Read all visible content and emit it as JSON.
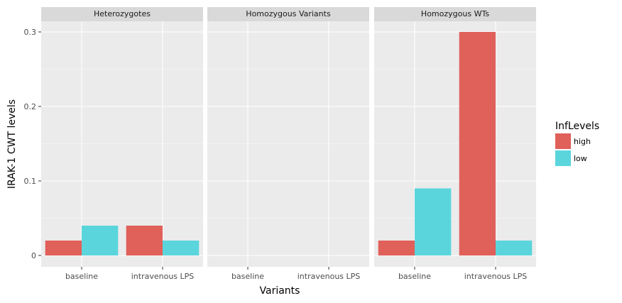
{
  "chart_data": {
    "type": "bar",
    "xlabel": "Variants",
    "ylabel": "IRAK-1 CWT levels",
    "ylim": [
      -0.014,
      0.3
    ],
    "yticks": [
      0,
      0.1,
      0.2,
      0.3
    ],
    "ytick_labels": [
      "0",
      "0.1",
      "0.2",
      "0.3"
    ],
    "categories": [
      "baseline",
      "intravenous LPS"
    ],
    "legend": {
      "title": "InfLevels",
      "placement": "right",
      "items": [
        {
          "name": "high",
          "color": "#e0605a"
        },
        {
          "name": "low",
          "color": "#5bd5dc"
        }
      ]
    },
    "facets": [
      {
        "title": "Heterozygotes",
        "series": [
          {
            "name": "high",
            "values": [
              0.02,
              0.04
            ]
          },
          {
            "name": "low",
            "values": [
              0.04,
              0.02
            ]
          }
        ]
      },
      {
        "title": "Homozygous Variants",
        "series": [
          {
            "name": "high",
            "values": [
              0,
              0
            ]
          },
          {
            "name": "low",
            "values": [
              0,
              0
            ]
          }
        ]
      },
      {
        "title": "Homozygous WTs",
        "series": [
          {
            "name": "high",
            "values": [
              0.02,
              0.3
            ]
          },
          {
            "name": "low",
            "values": [
              0.09,
              0.02
            ]
          }
        ]
      }
    ],
    "grid": true,
    "colors": {
      "panel_bg": "#ebebeb",
      "strip_bg": "#d9d9d9",
      "grid_major": "#ffffff",
      "grid_minor": "#f2f2f2"
    }
  }
}
